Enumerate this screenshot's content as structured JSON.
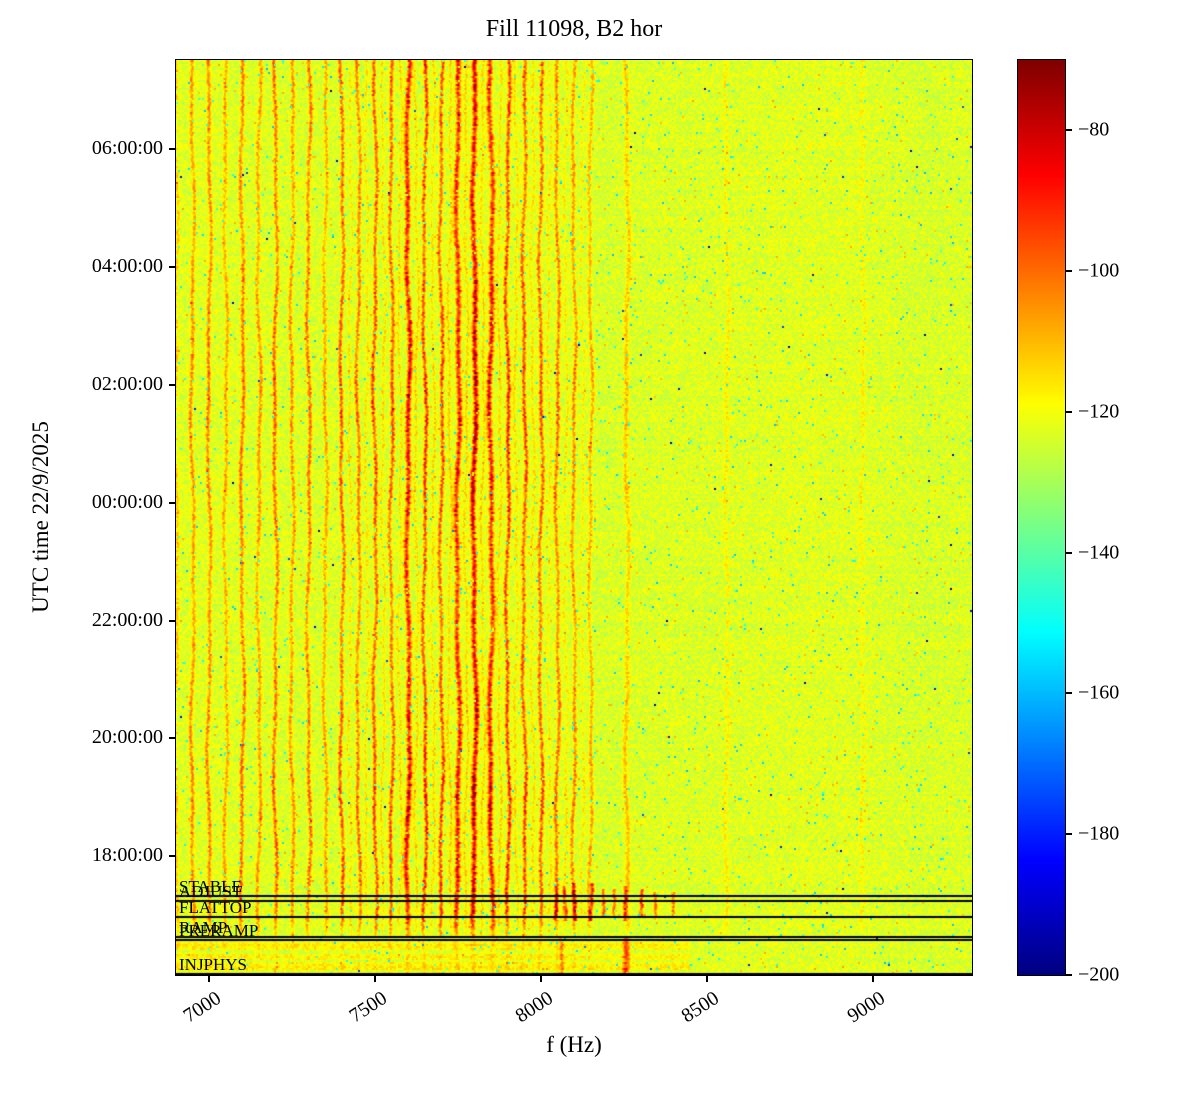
{
  "chart_data": {
    "type": "heatmap",
    "title": "Fill 11098, B2 hor",
    "xlabel": "f (Hz)",
    "ylabel": "UTC time 22/9/2025",
    "legend": "none",
    "grid": false,
    "x_axis": {
      "min": 6900,
      "max": 9300,
      "ticks": [
        7000,
        7500,
        8000,
        8500,
        9000
      ],
      "tick_labels": [
        "7000",
        "7500",
        "8000",
        "8500",
        "9000"
      ]
    },
    "y_axis": {
      "description": "UTC time, hours since 22/9/2025 00:00, increasing upward",
      "min_h": 15.98,
      "max_h": 31.52,
      "ticks_h": [
        18,
        20,
        22,
        24,
        26,
        28,
        30
      ],
      "tick_labels": [
        "18:00:00",
        "20:00:00",
        "22:00:00",
        "00:00:00",
        "02:00:00",
        "04:00:00",
        "06:00:00"
      ]
    },
    "colorbar": {
      "colormap": "jet",
      "vmin": -200,
      "vmax": -70,
      "ticks": [
        -80,
        -100,
        -120,
        -140,
        -160,
        -180,
        -200
      ],
      "tick_labels": [
        "−80",
        "−100",
        "−120",
        "−140",
        "−160",
        "−180",
        "−200"
      ]
    },
    "background_level_db": -123,
    "noise_sigma_db": 4,
    "beam_modes": [
      {
        "label": "INJPHYS",
        "time_h": 16.0
      },
      {
        "label": "PRERAMP",
        "time_h": 16.58
      },
      {
        "label": "RAMP",
        "time_h": 16.63
      },
      {
        "label": "FLATTOP",
        "time_h": 16.96
      },
      {
        "label": "ADJUST",
        "time_h": 17.24
      },
      {
        "label": "STABLE",
        "time_h": 17.32
      }
    ],
    "harmonics_f_s_db": [
      [
        6900,
        14
      ],
      [
        6950,
        20
      ],
      [
        7000,
        22
      ],
      [
        7050,
        17
      ],
      [
        7100,
        24
      ],
      [
        7150,
        19
      ],
      [
        7200,
        26
      ],
      [
        7250,
        20
      ],
      [
        7300,
        24
      ],
      [
        7350,
        18
      ],
      [
        7400,
        28
      ],
      [
        7450,
        24
      ],
      [
        7500,
        30
      ],
      [
        7550,
        28
      ],
      [
        7600,
        40
      ],
      [
        7650,
        33
      ],
      [
        7700,
        29
      ],
      [
        7750,
        37
      ],
      [
        7800,
        44
      ],
      [
        7850,
        38
      ],
      [
        7900,
        33
      ],
      [
        7950,
        29
      ],
      [
        8000,
        27
      ],
      [
        8050,
        24
      ],
      [
        8100,
        21
      ],
      [
        8150,
        17
      ]
    ],
    "inter_harmonics_f_s_db": [
      [
        7425,
        9
      ],
      [
        7475,
        9
      ],
      [
        7525,
        10
      ],
      [
        7575,
        10
      ],
      [
        7625,
        11
      ],
      [
        7675,
        10
      ],
      [
        7725,
        11
      ],
      [
        7775,
        11
      ],
      [
        7825,
        10
      ],
      [
        7875,
        10
      ],
      [
        7925,
        9
      ],
      [
        7975,
        9
      ],
      [
        8025,
        8
      ],
      [
        8075,
        8
      ],
      [
        8125,
        7
      ]
    ],
    "persistent_faint_lines_f_s_db": [
      [
        8260,
        13
      ],
      [
        8560,
        6
      ],
      [
        8970,
        5
      ]
    ],
    "transient_lines": [
      {
        "f": 8040,
        "s": 22,
        "win": [
          16.9,
          17.5
        ]
      },
      {
        "f": 8070,
        "s": 24,
        "win": [
          16.9,
          17.5
        ]
      },
      {
        "f": 8100,
        "s": 30,
        "win": [
          16.9,
          17.55
        ]
      },
      {
        "f": 8150,
        "s": 30,
        "win": [
          16.9,
          17.55
        ]
      },
      {
        "f": 8190,
        "s": 25,
        "win": [
          16.95,
          17.45
        ]
      },
      {
        "f": 8225,
        "s": 24,
        "win": [
          16.95,
          17.45
        ]
      },
      {
        "f": 8255,
        "s": 28,
        "win": [
          16.9,
          17.5
        ]
      },
      {
        "f": 8300,
        "s": 26,
        "win": [
          16.95,
          17.45
        ]
      },
      {
        "f": 8350,
        "s": 22,
        "win": [
          16.95,
          17.4
        ]
      },
      {
        "f": 8400,
        "s": 20,
        "win": [
          16.95,
          17.4
        ]
      },
      {
        "f": 8058,
        "s": 16,
        "win": [
          16.0,
          16.62
        ]
      },
      {
        "f": 8258,
        "s": 24,
        "win": [
          16.0,
          16.62
        ]
      }
    ]
  }
}
